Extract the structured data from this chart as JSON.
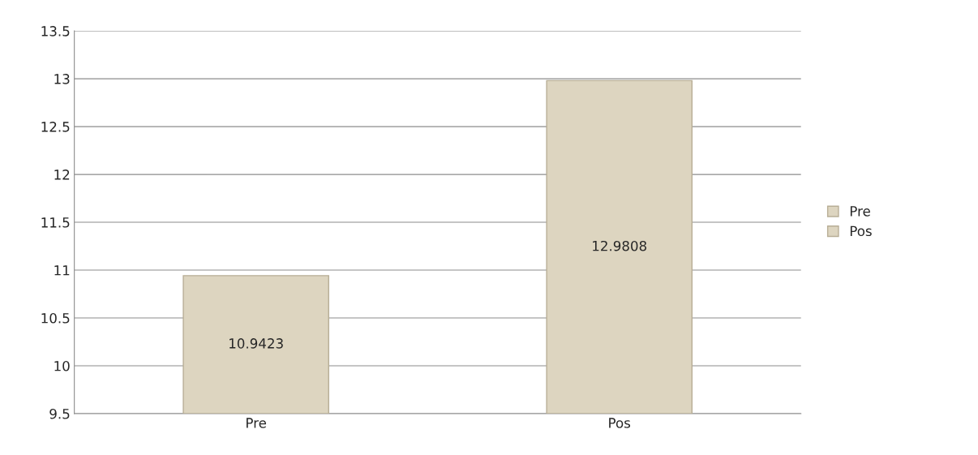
{
  "chart_data": {
    "type": "bar",
    "categories": [
      "Pre",
      "Pos"
    ],
    "series": [
      {
        "name": "Pre",
        "color": "#ddd5c0",
        "values": [
          10.9423,
          null
        ]
      },
      {
        "name": "Pos",
        "color": "#ddd5c0",
        "values": [
          null,
          12.9808
        ]
      }
    ],
    "ylim": [
      9.5,
      13.5
    ],
    "yticks": [
      9.5,
      10,
      10.5,
      11,
      11.5,
      12,
      12.5,
      13,
      13.5
    ],
    "grid": "y",
    "legend": "right",
    "data_labels": true
  }
}
